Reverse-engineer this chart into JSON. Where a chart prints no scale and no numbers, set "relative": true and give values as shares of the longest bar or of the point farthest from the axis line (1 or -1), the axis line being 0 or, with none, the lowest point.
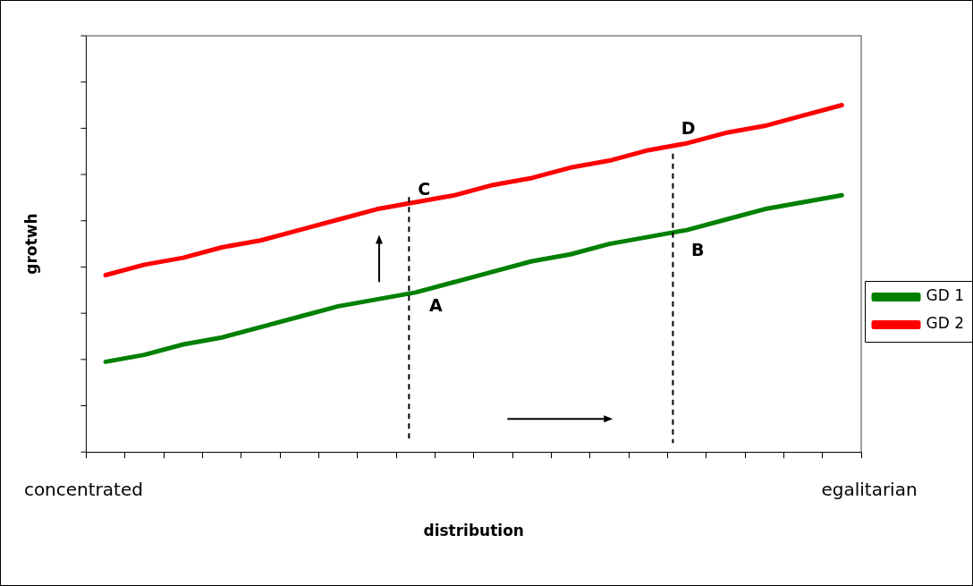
{
  "chart_data": {
    "type": "line",
    "relative": true,
    "xlabel": "distribution",
    "ylabel": "grotwh",
    "legend": "right",
    "marker": "none",
    "line_style": "solid",
    "grid": false,
    "categories": [
      null,
      null,
      null,
      null,
      null,
      null,
      null,
      null,
      null,
      null,
      null,
      null,
      null,
      null,
      null,
      null,
      null,
      null,
      null,
      null
    ],
    "series": [
      {
        "name": "GD 1",
        "color": "#008000",
        "values": [
          0.26,
          0.28,
          0.31,
          0.33,
          0.36,
          0.39,
          0.42,
          0.44,
          0.46,
          0.49,
          0.52,
          0.55,
          0.57,
          0.6,
          0.62,
          0.64,
          0.67,
          0.7,
          0.72,
          0.74
        ]
      },
      {
        "name": "GD 2",
        "color": "#ff0000",
        "values": [
          0.51,
          0.54,
          0.56,
          0.59,
          0.61,
          0.64,
          0.67,
          0.7,
          0.72,
          0.74,
          0.77,
          0.79,
          0.82,
          0.84,
          0.87,
          0.89,
          0.92,
          0.94,
          0.97,
          1
        ]
      }
    ],
    "annotations": [
      "A",
      "B",
      "C",
      "D",
      "concentrated",
      "egalitarian"
    ]
  }
}
